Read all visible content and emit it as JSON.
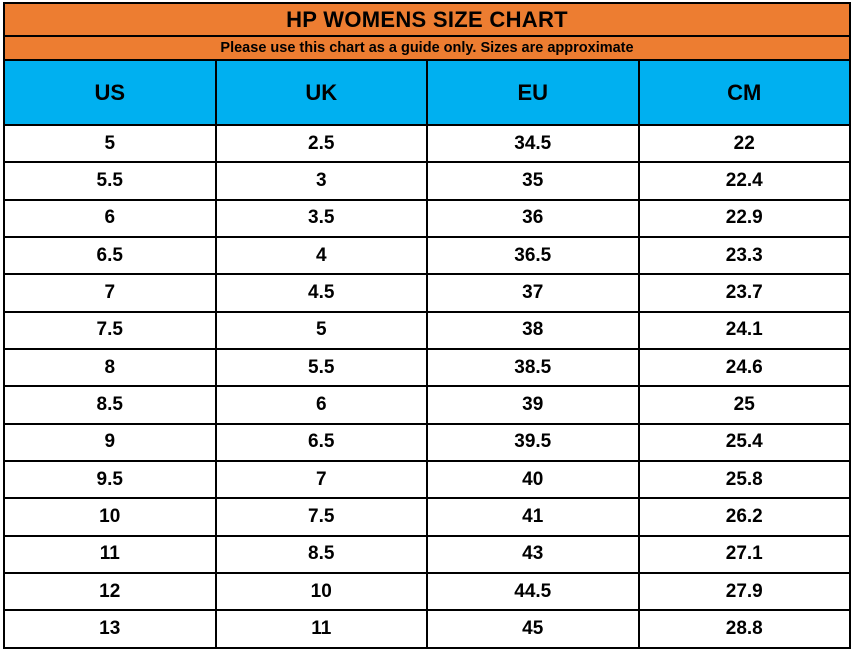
{
  "title": "HP WOMENS SIZE CHART",
  "subtitle": "Please use this chart as a guide only. Sizes are approximate",
  "colors": {
    "title_band": "#ED7D31",
    "header_band": "#00B0F0",
    "border": "#000000",
    "text": "#000000",
    "row_bg": "#ffffff"
  },
  "chart_data": {
    "type": "table",
    "title": "HP WOMENS SIZE CHART",
    "subtitle": "Please use this chart as a guide only. Sizes are approximate",
    "columns": [
      "US",
      "UK",
      "EU",
      "CM"
    ],
    "rows": [
      [
        "5",
        "2.5",
        "34.5",
        "22"
      ],
      [
        "5.5",
        "3",
        "35",
        "22.4"
      ],
      [
        "6",
        "3.5",
        "36",
        "22.9"
      ],
      [
        "6.5",
        "4",
        "36.5",
        "23.3"
      ],
      [
        "7",
        "4.5",
        "37",
        "23.7"
      ],
      [
        "7.5",
        "5",
        "38",
        "24.1"
      ],
      [
        "8",
        "5.5",
        "38.5",
        "24.6"
      ],
      [
        "8.5",
        "6",
        "39",
        "25"
      ],
      [
        "9",
        "6.5",
        "39.5",
        "25.4"
      ],
      [
        "9.5",
        "7",
        "40",
        "25.8"
      ],
      [
        "10",
        "7.5",
        "41",
        "26.2"
      ],
      [
        "11",
        "8.5",
        "43",
        "27.1"
      ],
      [
        "12",
        "10",
        "44.5",
        "27.9"
      ],
      [
        "13",
        "11",
        "45",
        "28.8"
      ]
    ]
  }
}
